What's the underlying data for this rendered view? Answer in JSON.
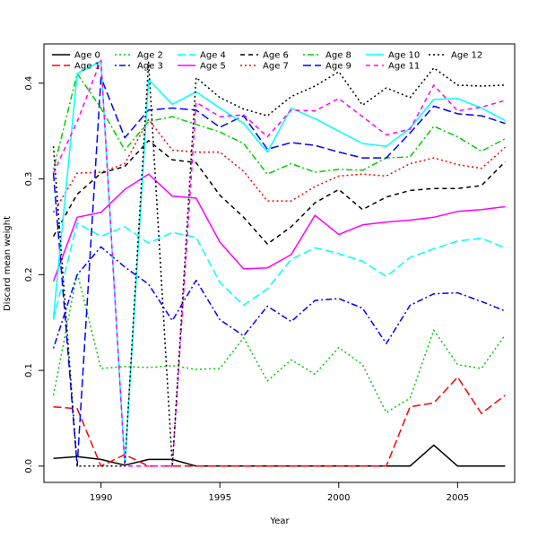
{
  "chart_data": {
    "type": "line",
    "xlabel": "Year",
    "ylabel": "Discard mean weight",
    "xlim": [
      1987.6,
      2007.4
    ],
    "ylim": [
      -0.017,
      0.441
    ],
    "xticks": [
      1990,
      1995,
      2000,
      2005
    ],
    "yticks": [
      0.0,
      0.1,
      0.2,
      0.3,
      0.4
    ],
    "ytick_labels": [
      "0.0",
      "0.1",
      "0.2",
      "0.3",
      "0.4"
    ],
    "grid": false,
    "legend_position": "top-left",
    "x": [
      1988,
      1989,
      1990,
      1991,
      1992,
      1993,
      1994,
      1995,
      1996,
      1997,
      1998,
      1999,
      2000,
      2001,
      2002,
      2003,
      2004,
      2005,
      2006,
      2007
    ],
    "series": [
      {
        "name": "Age 0",
        "color": "#000000",
        "dash": "solid",
        "values": [
          0.008,
          0.01,
          0.007,
          0.001,
          0.007,
          0.007,
          0.0,
          0.0,
          0.0,
          0.0,
          0.0,
          0.0,
          0.0,
          0.0,
          0.0,
          0.0,
          0.022,
          0.0,
          0.0,
          0.0
        ]
      },
      {
        "name": "Age 1",
        "color": "#ff0000",
        "dash": "longdash",
        "values": [
          0.062,
          0.06,
          0.0,
          0.012,
          0.0,
          0.0,
          0.0,
          0.0,
          0.0,
          0.0,
          0.0,
          0.0,
          0.0,
          0.0,
          0.0,
          0.062,
          0.066,
          0.093,
          0.055,
          0.074
        ]
      },
      {
        "name": "Age 2",
        "color": "#00cd00",
        "dash": "dotted",
        "values": [
          0.074,
          0.202,
          0.102,
          0.104,
          0.103,
          0.105,
          0.101,
          0.102,
          0.134,
          0.089,
          0.111,
          0.096,
          0.124,
          0.106,
          0.056,
          0.071,
          0.142,
          0.106,
          0.102,
          0.137
        ]
      },
      {
        "name": "Age 3",
        "color": "#0000ff",
        "dash": "dotdash",
        "values": [
          0.123,
          0.2,
          0.229,
          0.208,
          0.19,
          0.152,
          0.194,
          0.153,
          0.136,
          0.167,
          0.151,
          0.173,
          0.175,
          0.165,
          0.128,
          0.168,
          0.18,
          0.181,
          0.172,
          0.162
        ]
      },
      {
        "name": "Age 4",
        "color": "#00ffff",
        "dash": "longdash",
        "values": [
          0.153,
          0.254,
          0.24,
          0.25,
          0.233,
          0.244,
          0.239,
          0.192,
          0.168,
          0.185,
          0.216,
          0.228,
          0.222,
          0.214,
          0.198,
          0.218,
          0.227,
          0.235,
          0.238,
          0.228
        ]
      },
      {
        "name": "Age 5",
        "color": "#ff00ff",
        "dash": "solid",
        "values": [
          0.193,
          0.26,
          0.265,
          0.289,
          0.305,
          0.282,
          0.28,
          0.234,
          0.206,
          0.207,
          0.221,
          0.262,
          0.242,
          0.252,
          0.255,
          0.257,
          0.26,
          0.266,
          0.268,
          0.271
        ]
      },
      {
        "name": "Age 6",
        "color": "#000000",
        "dash": "dashed",
        "values": [
          0.24,
          0.284,
          0.306,
          0.313,
          0.34,
          0.32,
          0.317,
          0.283,
          0.26,
          0.232,
          0.25,
          0.275,
          0.289,
          0.268,
          0.281,
          0.288,
          0.29,
          0.29,
          0.293,
          0.318
        ]
      },
      {
        "name": "Age 7",
        "color": "#ff0000",
        "dash": "dotted",
        "values": [
          0.265,
          0.306,
          0.307,
          0.316,
          0.362,
          0.33,
          0.328,
          0.328,
          0.308,
          0.277,
          0.277,
          0.292,
          0.303,
          0.305,
          0.303,
          0.316,
          0.322,
          0.315,
          0.311,
          0.333
        ]
      },
      {
        "name": "Age 8",
        "color": "#00cd00",
        "dash": "dotdash",
        "values": [
          0.31,
          0.41,
          0.374,
          0.33,
          0.36,
          0.365,
          0.357,
          0.349,
          0.337,
          0.305,
          0.316,
          0.307,
          0.31,
          0.309,
          0.322,
          0.323,
          0.355,
          0.344,
          0.329,
          0.342
        ]
      },
      {
        "name": "Age 9",
        "color": "#0000ff",
        "dash": "longdash",
        "values": [
          0.306,
          0.0,
          0.406,
          0.343,
          0.372,
          0.374,
          0.372,
          0.354,
          0.366,
          0.331,
          0.338,
          0.335,
          0.328,
          0.322,
          0.322,
          0.348,
          0.376,
          0.368,
          0.366,
          0.358
        ]
      },
      {
        "name": "Age 10",
        "color": "#00ffff",
        "dash": "solid",
        "values": [
          0.155,
          0.41,
          0.423,
          0.0,
          0.404,
          0.378,
          0.391,
          0.374,
          0.358,
          0.328,
          0.374,
          0.363,
          0.35,
          0.337,
          0.334,
          0.353,
          0.383,
          0.384,
          0.374,
          0.361
        ]
      },
      {
        "name": "Age 11",
        "color": "#ff00ff",
        "dash": "dashed",
        "values": [
          0.306,
          0.36,
          0.424,
          0.0,
          0.0,
          0.0,
          0.38,
          0.365,
          0.367,
          0.344,
          0.372,
          0.371,
          0.384,
          0.365,
          0.346,
          0.352,
          0.398,
          0.371,
          0.375,
          0.382
        ]
      },
      {
        "name": "Age 12",
        "color": "#000000",
        "dash": "dotted",
        "values": [
          0.334,
          0.0,
          0.0,
          0.0,
          0.422,
          0.0,
          0.406,
          0.385,
          0.373,
          0.366,
          0.386,
          0.397,
          0.412,
          0.377,
          0.395,
          0.385,
          0.416,
          0.398,
          0.397,
          0.398
        ]
      }
    ]
  }
}
